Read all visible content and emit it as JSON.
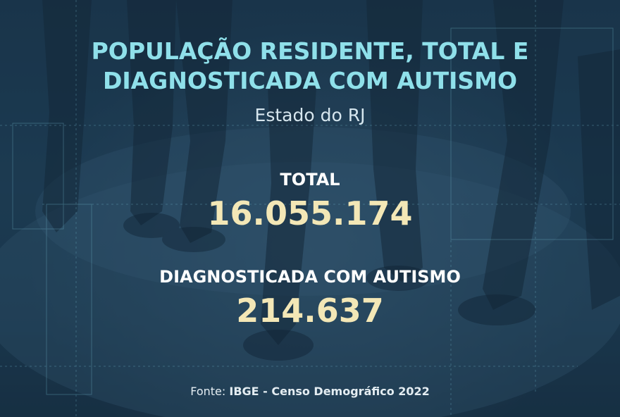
{
  "title": {
    "line1": "POPULAÇÃO RESIDENTE, TOTAL E",
    "line2": "DIAGNOSTICADA COM AUTISMO"
  },
  "subtitle": "Estado do RJ",
  "stats": [
    {
      "label": "TOTAL",
      "value": "16.055.174"
    },
    {
      "label": "DIAGNOSTICADA COM AUTISMO",
      "value": "214.637"
    }
  ],
  "source": {
    "prefix": "Fonte: ",
    "text": "IBGE - Censo Demográfico 2022"
  },
  "colors": {
    "background": "#1c3a50",
    "title": "#8fe0ea",
    "value": "#f3e7b6",
    "label": "#ffffff"
  }
}
